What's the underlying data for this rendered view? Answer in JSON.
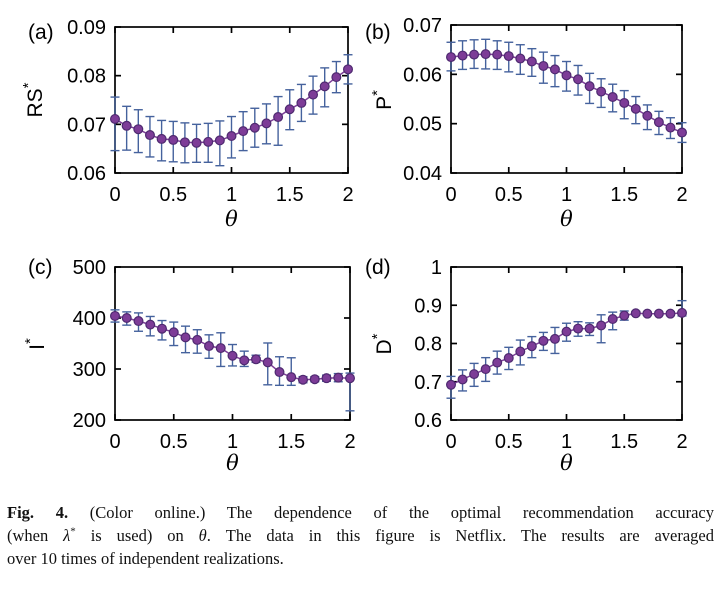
{
  "colors": {
    "axis": "#000000",
    "errorbar": "#45629d",
    "line": "#7d3f98",
    "marker_fill": "#7d3c97",
    "marker_edge": "#4e2a70",
    "text": "#000000"
  },
  "chart_data": [
    {
      "type": "line",
      "panel": "(a)",
      "ylabel_base": "RS",
      "ylabel_sup": "*",
      "xlabel": "θ",
      "xlim": [
        0,
        2
      ],
      "ylim": [
        0.06,
        0.09
      ],
      "xticks": [
        0,
        0.5,
        1,
        1.5,
        2
      ],
      "xtick_labels": [
        "0",
        "0.5",
        "1",
        "1.5",
        "2"
      ],
      "yticks": [
        0.06,
        0.07,
        0.08,
        0.09
      ],
      "ytick_labels": [
        "0.06",
        "0.07",
        "0.08",
        "0.09"
      ],
      "x": [
        0,
        0.1,
        0.2,
        0.3,
        0.4,
        0.5,
        0.6,
        0.7,
        0.8,
        0.9,
        1.0,
        1.1,
        1.2,
        1.3,
        1.4,
        1.5,
        1.6,
        1.7,
        1.8,
        1.9,
        2.0
      ],
      "y": [
        0.0711,
        0.0697,
        0.069,
        0.0678,
        0.067,
        0.0668,
        0.0663,
        0.0662,
        0.0664,
        0.0667,
        0.0676,
        0.0686,
        0.0693,
        0.0702,
        0.0715,
        0.0731,
        0.0744,
        0.0761,
        0.0778,
        0.0797,
        0.0813
      ],
      "err_up": [
        0.0045,
        0.004,
        0.004,
        0.0038,
        0.0038,
        0.0038,
        0.004,
        0.0038,
        0.0038,
        0.004,
        0.004,
        0.004,
        0.004,
        0.004,
        0.0042,
        0.004,
        0.0038,
        0.0038,
        0.0038,
        0.0032,
        0.003
      ],
      "err_down": [
        0.0065,
        0.005,
        0.0048,
        0.0045,
        0.0045,
        0.0045,
        0.0042,
        0.004,
        0.0042,
        0.0052,
        0.0045,
        0.004,
        0.004,
        0.0042,
        0.0058,
        0.0042,
        0.0038,
        0.004,
        0.0042,
        0.0032,
        0.003
      ]
    },
    {
      "type": "line",
      "panel": "(b)",
      "ylabel_base": "P",
      "ylabel_sup": "*",
      "xlabel": "θ",
      "xlim": [
        0,
        2
      ],
      "ylim": [
        0.04,
        0.07
      ],
      "xticks": [
        0,
        0.5,
        1,
        1.5,
        2
      ],
      "xtick_labels": [
        "0",
        "0.5",
        "1",
        "1.5",
        "2"
      ],
      "yticks": [
        0.04,
        0.05,
        0.06,
        0.07
      ],
      "ytick_labels": [
        "0.04",
        "0.05",
        "0.06",
        "0.07"
      ],
      "x": [
        0,
        0.1,
        0.2,
        0.3,
        0.4,
        0.5,
        0.6,
        0.7,
        0.8,
        0.9,
        1.0,
        1.1,
        1.2,
        1.3,
        1.4,
        1.5,
        1.6,
        1.7,
        1.8,
        1.9,
        2.0
      ],
      "y": [
        0.0635,
        0.0638,
        0.064,
        0.0641,
        0.064,
        0.0637,
        0.0632,
        0.0626,
        0.0617,
        0.061,
        0.0598,
        0.059,
        0.0576,
        0.0565,
        0.0554,
        0.0542,
        0.053,
        0.0516,
        0.0503,
        0.0492,
        0.0482
      ],
      "err_up": [
        0.003,
        0.003,
        0.003,
        0.003,
        0.0028,
        0.0028,
        0.0028,
        0.0026,
        0.0028,
        0.0028,
        0.0028,
        0.0028,
        0.0026,
        0.0026,
        0.0026,
        0.0025,
        0.0025,
        0.0022,
        0.0022,
        0.002,
        0.002
      ],
      "err_down": [
        0.0028,
        0.0028,
        0.0028,
        0.003,
        0.003,
        0.0032,
        0.0032,
        0.003,
        0.0035,
        0.0035,
        0.0032,
        0.0032,
        0.0035,
        0.0032,
        0.003,
        0.0032,
        0.003,
        0.0028,
        0.0025,
        0.0022,
        0.002
      ]
    },
    {
      "type": "line",
      "panel": "(c)",
      "ylabel_base": "I",
      "ylabel_sup": "*",
      "xlabel": "θ",
      "xlim": [
        0,
        2
      ],
      "ylim": [
        200,
        500
      ],
      "xticks": [
        0,
        0.5,
        1,
        1.5,
        2
      ],
      "xtick_labels": [
        "0",
        "0.5",
        "1",
        "1.5",
        "2"
      ],
      "yticks": [
        200,
        300,
        400,
        500
      ],
      "ytick_labels": [
        "200",
        "300",
        "400",
        "500"
      ],
      "x": [
        0,
        0.1,
        0.2,
        0.3,
        0.4,
        0.5,
        0.6,
        0.7,
        0.8,
        0.9,
        1.0,
        1.1,
        1.2,
        1.3,
        1.4,
        1.5,
        1.6,
        1.7,
        1.8,
        1.9,
        2.0
      ],
      "y": [
        404,
        400,
        394,
        387,
        379,
        372,
        362,
        357,
        345,
        341,
        326,
        317,
        319,
        313,
        294,
        284,
        279,
        280,
        282,
        283,
        282
      ],
      "err_up": [
        12,
        12,
        16,
        16,
        16,
        20,
        22,
        20,
        22,
        30,
        22,
        18,
        8,
        38,
        30,
        38,
        6,
        5,
        6,
        8,
        10
      ],
      "err_down": [
        12,
        14,
        20,
        22,
        22,
        26,
        30,
        26,
        24,
        36,
        20,
        12,
        6,
        44,
        26,
        16,
        6,
        5,
        6,
        8,
        64
      ]
    },
    {
      "type": "line",
      "panel": "(d)",
      "ylabel_base": "D",
      "ylabel_sup": "*",
      "xlabel": "θ",
      "xlim": [
        0,
        2
      ],
      "ylim": [
        0.6,
        1.0
      ],
      "xticks": [
        0,
        0.5,
        1,
        1.5,
        2
      ],
      "xtick_labels": [
        "0",
        "0.5",
        "1",
        "1.5",
        "2"
      ],
      "yticks": [
        0.6,
        0.7,
        0.8,
        0.9,
        1.0
      ],
      "ytick_labels": [
        "0.6",
        "0.7",
        "0.8",
        "0.9",
        "1"
      ],
      "x": [
        0,
        0.1,
        0.2,
        0.3,
        0.4,
        0.5,
        0.6,
        0.7,
        0.8,
        0.9,
        1.0,
        1.1,
        1.2,
        1.3,
        1.4,
        1.5,
        1.6,
        1.7,
        1.8,
        1.9,
        2.0
      ],
      "y": [
        0.692,
        0.706,
        0.72,
        0.733,
        0.75,
        0.762,
        0.779,
        0.793,
        0.807,
        0.812,
        0.831,
        0.839,
        0.839,
        0.847,
        0.864,
        0.873,
        0.879,
        0.878,
        0.878,
        0.878,
        0.88
      ],
      "err_up": [
        0.022,
        0.025,
        0.028,
        0.03,
        0.03,
        0.028,
        0.03,
        0.025,
        0.022,
        0.03,
        0.022,
        0.018,
        0.015,
        0.028,
        0.018,
        0.012,
        0.005,
        0.004,
        0.004,
        0.005,
        0.032
      ],
      "err_down": [
        0.035,
        0.03,
        0.032,
        0.032,
        0.03,
        0.03,
        0.035,
        0.03,
        0.025,
        0.038,
        0.025,
        0.02,
        0.018,
        0.045,
        0.028,
        0.012,
        0.005,
        0.004,
        0.004,
        0.005,
        0.008
      ]
    }
  ],
  "caption": {
    "fig_label": "Fig. 4.",
    "l1_rest": " (Color online.) The dependence of the optimal recommendation accuracy",
    "l2_pre": "(when ",
    "l2_lambda": "λ",
    "l2_sup": "*",
    "l2_mid": " is used) on ",
    "l2_theta": "θ",
    "l2_rest": ". The data in this figure is Netflix. The results are averaged",
    "l3": "over 10 times of independent realizations."
  }
}
